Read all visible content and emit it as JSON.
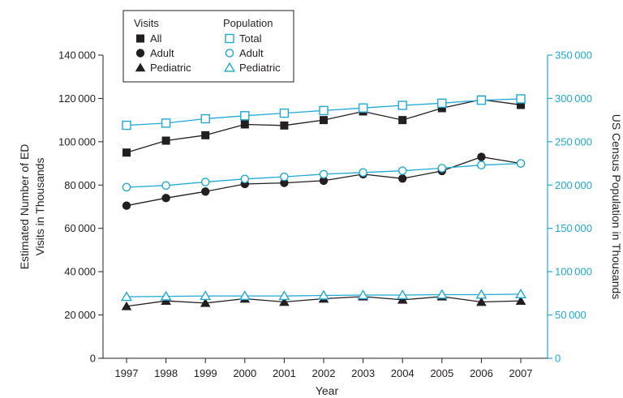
{
  "chart_data": {
    "type": "line",
    "title": "",
    "x": [
      "1997",
      "1998",
      "1999",
      "2000",
      "2001",
      "2002",
      "2003",
      "2004",
      "2005",
      "2006",
      "2007"
    ],
    "xlabel": "Year",
    "ylabel_left": [
      "Estimated Number of ED",
      "Visits in Thousands"
    ],
    "ylabel_right": "US Census Population in Thousands",
    "ylim_left": [
      0,
      140000
    ],
    "ylim_right": [
      0,
      350000
    ],
    "yticks_left": [
      0,
      20000,
      40000,
      60000,
      80000,
      100000,
      120000,
      140000
    ],
    "yticks_right": [
      0,
      50000,
      100000,
      150000,
      200000,
      250000,
      300000,
      350000
    ],
    "ytick_labels_left": [
      "0",
      "20 000",
      "40 000",
      "60 000",
      "80 000",
      "100 000",
      "120 000",
      "140 000"
    ],
    "ytick_labels_right": [
      "0",
      "50 000",
      "100 000",
      "150 000",
      "200 000",
      "250 000",
      "300 000",
      "350 000"
    ],
    "grid": false,
    "legend_position": "top",
    "legend_groups": [
      {
        "title": "Visits",
        "entries": [
          "All",
          "Adult",
          "Pediatric"
        ]
      },
      {
        "title": "Population",
        "entries": [
          "Total",
          "Adult",
          "Pediatric"
        ]
      }
    ],
    "colors": {
      "visits": "#231f20",
      "population": "#1fa9d8"
    },
    "series": [
      {
        "group": "Visits",
        "name": "All",
        "axis": "left",
        "marker": "square",
        "filled": true,
        "values": [
          95000,
          100500,
          103000,
          108000,
          107500,
          110000,
          114000,
          110000,
          115500,
          119500,
          117000
        ]
      },
      {
        "group": "Visits",
        "name": "Adult",
        "axis": "left",
        "marker": "circle",
        "filled": true,
        "values": [
          70500,
          74000,
          77000,
          80500,
          81000,
          82000,
          85000,
          83000,
          86500,
          93000,
          90000
        ]
      },
      {
        "group": "Visits",
        "name": "Pediatric",
        "axis": "left",
        "marker": "triangle",
        "filled": true,
        "values": [
          24000,
          26500,
          25500,
          27500,
          26000,
          27500,
          28500,
          27000,
          28500,
          26000,
          26500
        ]
      },
      {
        "group": "Population",
        "name": "Total",
        "axis": "right",
        "marker": "square",
        "filled": false,
        "values": [
          269000,
          271500,
          276500,
          280000,
          283000,
          286000,
          289000,
          292000,
          294500,
          298000,
          299500
        ]
      },
      {
        "group": "Population",
        "name": "Adult",
        "axis": "right",
        "marker": "circle",
        "filled": false,
        "values": [
          197500,
          199500,
          203500,
          207000,
          209500,
          212500,
          214500,
          216500,
          219500,
          223000,
          225000
        ]
      },
      {
        "group": "Population",
        "name": "Pediatric",
        "axis": "right",
        "marker": "triangle",
        "filled": false,
        "values": [
          71000,
          71500,
          72000,
          72000,
          72000,
          72500,
          73000,
          73000,
          73500,
          73500,
          74000
        ]
      }
    ]
  }
}
